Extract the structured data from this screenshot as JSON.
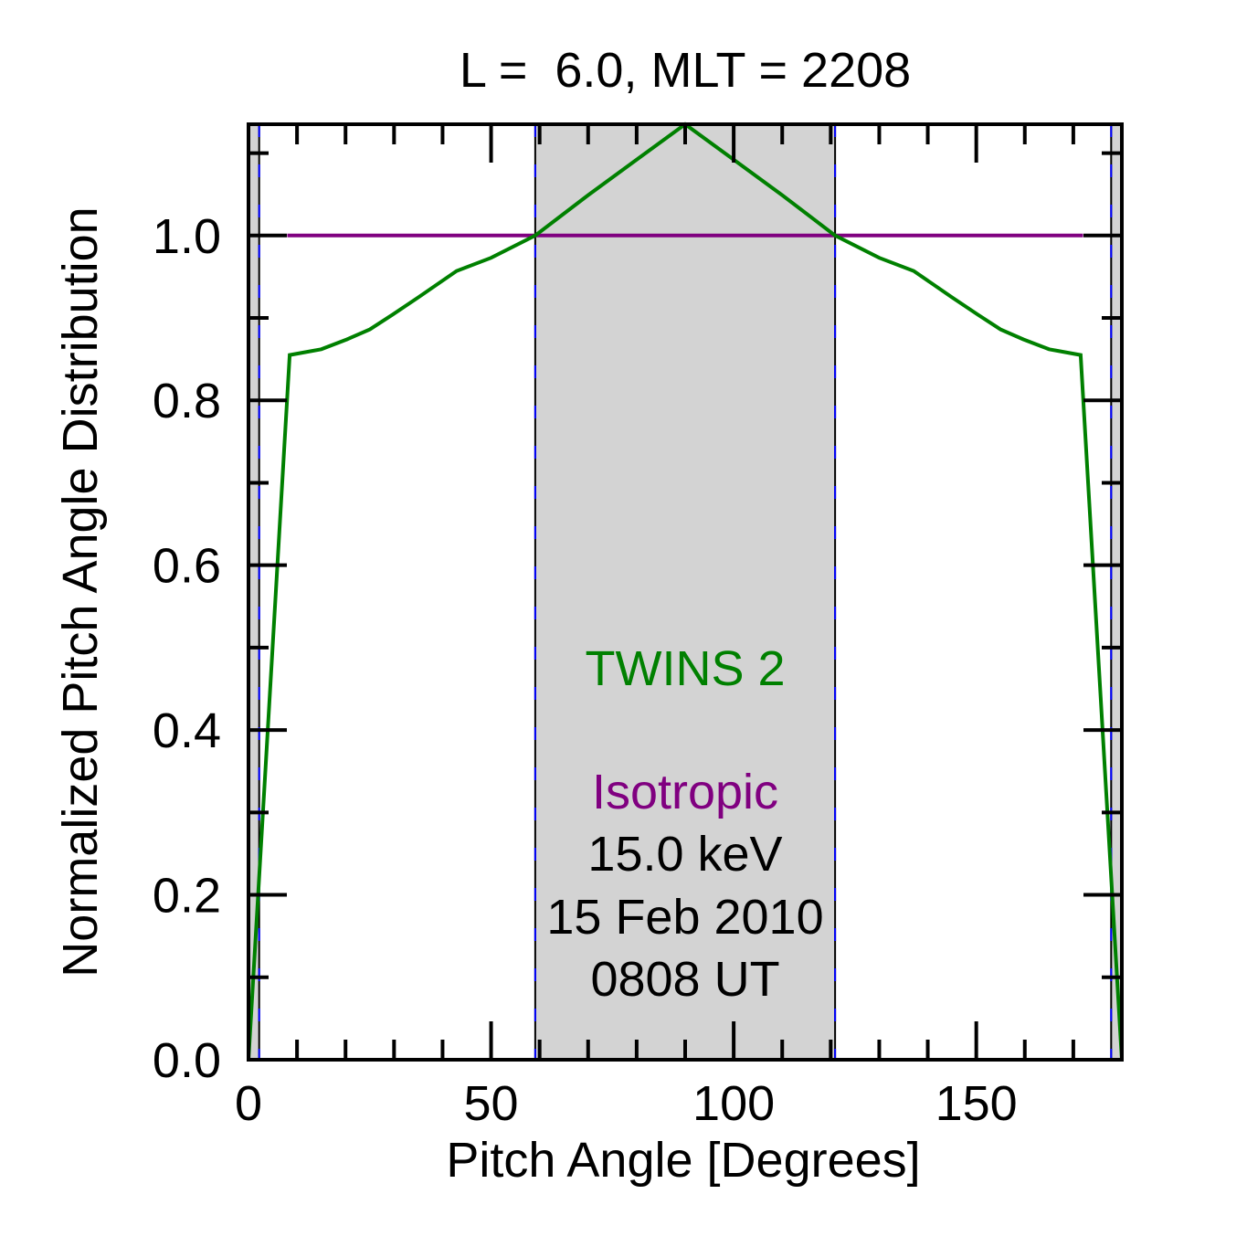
{
  "chart_data": {
    "type": "line",
    "title": "L =  6.0, MLT = 2208",
    "xlabel": "Pitch Angle [Degrees]",
    "ylabel": "Normalized Pitch Angle Distribution",
    "xlim": [
      0,
      180
    ],
    "ylim": [
      0,
      1.135
    ],
    "xticks": [
      0,
      50,
      100,
      150
    ],
    "xtick_labels": [
      "0",
      "50",
      "100",
      "150"
    ],
    "x_minor_step": 10,
    "yticks": [
      0.0,
      0.2,
      0.4,
      0.6,
      0.8,
      1.0
    ],
    "ytick_labels": [
      "0.0",
      "0.2",
      "0.4",
      "0.6",
      "0.8",
      "1.0"
    ],
    "y_minor_step": 0.1,
    "grid": false,
    "shaded_regions": [
      {
        "x0": 0,
        "x1": 2.2,
        "color": "#d3d3d3"
      },
      {
        "x0": 59.1,
        "x1": 120.9,
        "color": "#d3d3d3"
      },
      {
        "x0": 177.8,
        "x1": 180,
        "color": "#d3d3d3"
      }
    ],
    "boundary_lines": [
      2.2,
      59.1,
      120.9,
      177.8
    ],
    "series": [
      {
        "name": "TWINS 2",
        "color": "#008000",
        "x": [
          0,
          8.5,
          15,
          20.3,
          25,
          29.7,
          35,
          42.9,
          50,
          59.1,
          70,
          80,
          90,
          100,
          110,
          120.9,
          130,
          137.1,
          145,
          150.3,
          155,
          159.7,
          165,
          171.5,
          180
        ],
        "y": [
          0,
          0.855,
          0.862,
          0.874,
          0.886,
          0.904,
          0.925,
          0.957,
          0.973,
          1.0,
          1.049,
          1.092,
          1.135,
          1.092,
          1.049,
          1.0,
          0.973,
          0.957,
          0.925,
          0.904,
          0.886,
          0.874,
          0.862,
          0.855,
          0
        ]
      },
      {
        "name": "Isotropic",
        "color": "#800080",
        "x": [
          8,
          172
        ],
        "y": [
          1.0,
          1.0
        ]
      }
    ],
    "annotations": [
      {
        "text": "TWINS 2",
        "color": "#008000"
      },
      {
        "text": "Isotropic",
        "color": "#800080"
      },
      {
        "text": "15.0 keV",
        "color": "#000000"
      },
      {
        "text": "15 Feb 2010",
        "color": "#000000"
      },
      {
        "text": "0808 UT",
        "color": "#000000"
      }
    ]
  }
}
